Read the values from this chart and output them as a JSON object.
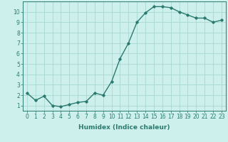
{
  "x": [
    0,
    1,
    2,
    3,
    4,
    5,
    6,
    7,
    8,
    9,
    10,
    11,
    12,
    13,
    14,
    15,
    16,
    17,
    18,
    19,
    20,
    21,
    22,
    23
  ],
  "y": [
    2.2,
    1.5,
    1.9,
    1.0,
    0.9,
    1.1,
    1.3,
    1.4,
    2.2,
    2.0,
    3.3,
    5.5,
    7.0,
    9.0,
    9.9,
    10.5,
    10.5,
    10.4,
    10.0,
    9.7,
    9.4,
    9.4,
    9.0,
    9.2
  ],
  "xlabel": "Humidex (Indice chaleur)",
  "xlim": [
    -0.5,
    23.5
  ],
  "ylim": [
    0.5,
    11.0
  ],
  "yticks": [
    1,
    2,
    3,
    4,
    5,
    6,
    7,
    8,
    9,
    10
  ],
  "xticks": [
    0,
    1,
    2,
    3,
    4,
    5,
    6,
    7,
    8,
    9,
    10,
    11,
    12,
    13,
    14,
    15,
    16,
    17,
    18,
    19,
    20,
    21,
    22,
    23
  ],
  "line_color": "#2a7a6f",
  "marker": "D",
  "marker_size": 1.8,
  "line_width": 1.0,
  "bg_color": "#cef0ec",
  "grid_color": "#aad8d3",
  "tick_label_fontsize": 5.5,
  "xlabel_fontsize": 6.5
}
